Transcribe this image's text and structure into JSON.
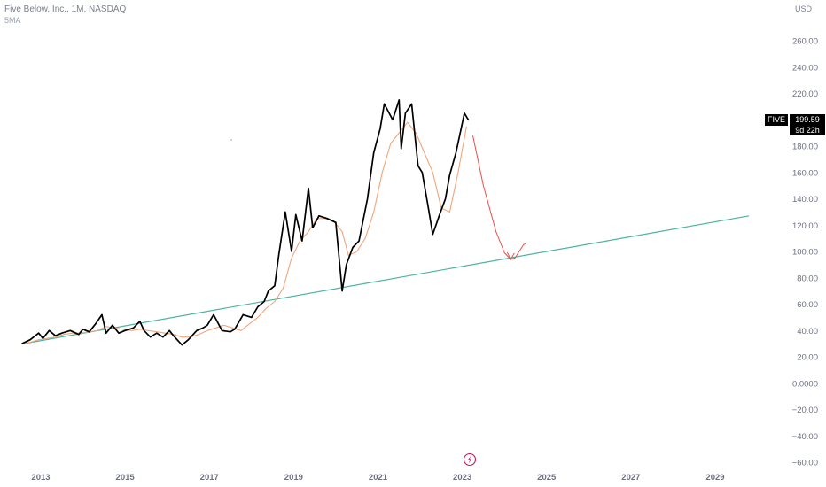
{
  "header": {
    "title": "Five Below, Inc., 1M, NASDAQ",
    "indicator": "5MA",
    "currency": "USD"
  },
  "price_label": {
    "ticker": "FIVE",
    "price": "199.59",
    "countdown": "9d 22h"
  },
  "colors": {
    "price_line": "#000000",
    "ma_line": "#f2a57a",
    "trend_line": "#4cb4a4",
    "projection": "#e8504a",
    "axis_text": "#6b7080"
  },
  "icons": {
    "watermark": "lightning-circle-icon"
  },
  "chart_data": {
    "type": "line",
    "title": "Five Below, Inc., 1M, NASDAQ",
    "xlabel": "",
    "ylabel": "",
    "ylim": [
      -60,
      260
    ],
    "xlim": [
      2012.6,
      2030.0
    ],
    "grid": false,
    "y_ticks": [
      "260.00",
      "240.00",
      "220.00",
      "200.00",
      "180.00",
      "160.00",
      "140.00",
      "120.00",
      "100.00",
      "80.00",
      "60.00",
      "40.00",
      "20.00",
      "0.0000",
      "−20.00",
      "−40.00",
      "−60.00"
    ],
    "y_tick_values": [
      260,
      240,
      220,
      200,
      180,
      160,
      140,
      120,
      100,
      80,
      60,
      40,
      20,
      0,
      -20,
      -40,
      -60
    ],
    "x_ticks": [
      "2013",
      "2015",
      "2017",
      "2019",
      "2021",
      "2023",
      "2025",
      "2027",
      "2029"
    ],
    "x_tick_values": [
      2013,
      2015,
      2017,
      2019,
      2021,
      2023,
      2025,
      2027,
      2029
    ],
    "series": [
      {
        "name": "FIVE",
        "x": [
          2012.55,
          2012.75,
          2012.95,
          2013.05,
          2013.2,
          2013.35,
          2013.5,
          2013.7,
          2013.9,
          2014.0,
          2014.15,
          2014.3,
          2014.45,
          2014.55,
          2014.7,
          2014.85,
          2015.0,
          2015.2,
          2015.35,
          2015.45,
          2015.6,
          2015.75,
          2015.9,
          2016.05,
          2016.15,
          2016.35,
          2016.5,
          2016.7,
          2016.85,
          2016.95,
          2017.1,
          2017.3,
          2017.5,
          2017.6,
          2017.8,
          2018.0,
          2018.15,
          2018.3,
          2018.4,
          2018.55,
          2018.65,
          2018.8,
          2018.95,
          2019.05,
          2019.2,
          2019.35,
          2019.45,
          2019.6,
          2019.8,
          2020.0,
          2020.15,
          2020.25,
          2020.4,
          2020.55,
          2020.75,
          2020.9,
          2021.05,
          2021.15,
          2021.35,
          2021.5,
          2021.55,
          2021.65,
          2021.8,
          2021.95,
          2022.05,
          2022.2,
          2022.3,
          2022.45,
          2022.6,
          2022.7,
          2022.85,
          2023.05,
          2023.15
        ],
        "values": [
          30,
          33,
          38,
          34,
          40,
          36,
          38,
          40,
          37,
          41,
          39,
          45,
          52,
          38,
          44,
          38,
          40,
          42,
          47,
          40,
          35,
          38,
          35,
          40,
          36,
          29,
          33,
          40,
          42,
          44,
          52,
          40,
          39,
          41,
          52,
          50,
          58,
          62,
          70,
          74,
          98,
          130,
          100,
          128,
          108,
          148,
          118,
          127,
          125,
          122,
          70,
          90,
          103,
          108,
          140,
          175,
          193,
          212,
          200,
          215,
          178,
          205,
          212,
          165,
          160,
          132,
          113,
          127,
          140,
          158,
          175,
          205,
          199.59
        ]
      },
      {
        "name": "5MA",
        "x": [
          2012.55,
          2012.75,
          2012.95,
          2013.15,
          2013.35,
          2013.55,
          2013.75,
          2013.95,
          2014.15,
          2014.35,
          2014.55,
          2014.75,
          2014.95,
          2015.15,
          2015.35,
          2015.55,
          2015.75,
          2015.95,
          2016.15,
          2016.35,
          2016.55,
          2016.75,
          2016.95,
          2017.15,
          2017.35,
          2017.55,
          2017.75,
          2017.95,
          2018.15,
          2018.35,
          2018.55,
          2018.75,
          2018.95,
          2019.15,
          2019.35,
          2019.55,
          2019.75,
          2019.95,
          2020.15,
          2020.3,
          2020.5,
          2020.7,
          2020.9,
          2021.1,
          2021.3,
          2021.5,
          2021.7,
          2021.9,
          2022.1,
          2022.3,
          2022.5,
          2022.7,
          2022.9,
          2023.1
        ],
        "values": [
          30,
          31,
          33,
          34,
          35,
          37,
          38,
          38,
          39,
          40,
          43,
          42,
          41,
          40,
          41,
          40,
          39,
          38,
          37,
          35,
          35,
          37,
          40,
          42,
          44,
          42,
          40,
          45,
          50,
          57,
          62,
          72,
          95,
          108,
          115,
          125,
          125,
          123,
          115,
          97,
          100,
          110,
          130,
          160,
          182,
          190,
          198,
          190,
          175,
          160,
          133,
          130,
          160,
          195
        ]
      },
      {
        "name": "trend",
        "x": [
          2012.6,
          2029.8
        ],
        "values": [
          30,
          127
        ]
      }
    ],
    "projection": {
      "x": [
        2023.25,
        2023.5,
        2023.8,
        2024.0,
        2024.15,
        2024.25,
        2024.35,
        2024.45,
        2024.5
      ],
      "values": [
        188,
        150,
        115,
        99,
        94,
        95,
        100,
        105,
        106
      ]
    }
  }
}
